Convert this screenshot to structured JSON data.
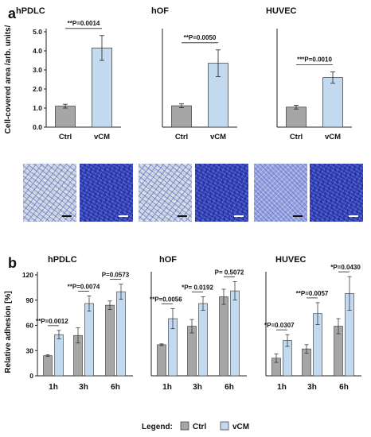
{
  "panel_a": {
    "letter": "a",
    "ylabel": "Cell-covered area /arb. units/",
    "charts": [
      {
        "title": "hPDLC",
        "pvalue": "**P=0.0014"
      },
      {
        "title": "hOF",
        "pvalue": "**P=0.0050"
      },
      {
        "title": "HUVEC",
        "pvalue": "***P=0.0010"
      }
    ]
  },
  "panel_b": {
    "letter": "b",
    "ylabel": "Relative adhesion [%]",
    "charts": [
      {
        "title": "hPDLC",
        "pvalues": [
          "**P=0.0012",
          "**P=0.0074",
          "P=0.0573"
        ]
      },
      {
        "title": "hOF",
        "pvalues": [
          "**P=0.0056",
          "*P= 0.0192",
          "P= 0.5072"
        ]
      },
      {
        "title": "HUVEC",
        "pvalues": [
          "*P=0.0307",
          "**P=0.0057",
          "*P=0.0430"
        ]
      }
    ]
  },
  "legend": {
    "label": "Legend:",
    "items": [
      "Ctrl",
      "vCM"
    ]
  },
  "colors": {
    "ctrl": "#a6a6a6",
    "vcm": "#c3d9ef",
    "stroke": "#333333"
  },
  "chart_data": [
    {
      "type": "bar",
      "title": "hPDLC",
      "categories": [
        "Ctrl",
        "vCM"
      ],
      "values": [
        1.1,
        4.15
      ],
      "errors": [
        0.1,
        0.65
      ],
      "ylim": [
        0,
        5
      ],
      "ylabel": "Cell-covered area /arb. units/",
      "yticks": [
        "0.0",
        "1.0",
        "2.0",
        "3.0",
        "4.0",
        "5.0"
      ]
    },
    {
      "type": "bar",
      "title": "hOF",
      "categories": [
        "Ctrl",
        "vCM"
      ],
      "values": [
        1.12,
        3.35
      ],
      "errors": [
        0.1,
        0.7
      ],
      "ylim": [
        0,
        5
      ]
    },
    {
      "type": "bar",
      "title": "HUVEC",
      "categories": [
        "Ctrl",
        "vCM"
      ],
      "values": [
        1.05,
        2.6
      ],
      "errors": [
        0.1,
        0.3
      ],
      "ylim": [
        0,
        5
      ]
    },
    {
      "type": "bar",
      "title": "hPDLC",
      "categories": [
        "1h",
        "3h",
        "6h"
      ],
      "ylim": [
        0,
        120
      ],
      "ylabel": "Relative adhesion [%]",
      "yticks": [
        "0",
        "30",
        "60",
        "90",
        "120"
      ],
      "series": [
        {
          "name": "Ctrl",
          "values": [
            24,
            48,
            84
          ],
          "errors": [
            1,
            9,
            5
          ]
        },
        {
          "name": "vCM",
          "values": [
            49,
            86,
            100
          ],
          "errors": [
            5,
            9,
            9
          ]
        }
      ]
    },
    {
      "type": "bar",
      "title": "hOF",
      "categories": [
        "1h",
        "3h",
        "6h"
      ],
      "ylim": [
        0,
        120
      ],
      "series": [
        {
          "name": "Ctrl",
          "values": [
            37,
            59,
            94
          ],
          "errors": [
            1,
            8,
            9
          ]
        },
        {
          "name": "vCM",
          "values": [
            68,
            86,
            101
          ],
          "errors": [
            12,
            8,
            11
          ]
        }
      ]
    },
    {
      "type": "bar",
      "title": "HUVEC",
      "categories": [
        "1h",
        "3h",
        "6h"
      ],
      "ylim": [
        0,
        120
      ],
      "series": [
        {
          "name": "Ctrl",
          "values": [
            21,
            32,
            59
          ],
          "errors": [
            5,
            5,
            9
          ]
        },
        {
          "name": "vCM",
          "values": [
            42,
            74,
            98
          ],
          "errors": [
            7,
            13,
            20
          ]
        }
      ]
    }
  ]
}
